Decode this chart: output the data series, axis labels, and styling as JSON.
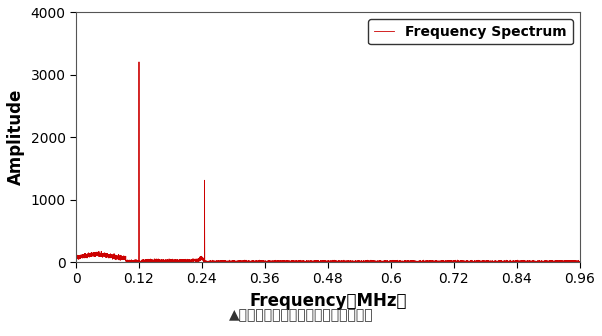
{
  "xlabel": "Frequency（MHz）",
  "ylabel": "Amplitude",
  "xlim": [
    0,
    0.96
  ],
  "ylim": [
    0,
    4000
  ],
  "xticks": [
    0,
    0.12,
    0.24,
    0.36,
    0.48,
    0.6,
    0.72,
    0.84,
    0.96
  ],
  "xtick_labels": [
    "0",
    "0.12",
    "0.24",
    "0.36",
    "0.48",
    "0.6",
    "0.72",
    "0.84",
    "0.96"
  ],
  "yticks": [
    0,
    1000,
    2000,
    3000,
    4000
  ],
  "ytick_labels": [
    "0",
    "1000",
    "2000",
    "3000",
    "4000"
  ],
  "peak1_freq": 0.12,
  "peak1_amp": 3200,
  "peak2_freq": 0.245,
  "peak2_amp": 1300,
  "line_color": "#cc0000",
  "legend_label": "Frequency Spectrum",
  "caption": "▲输气／液管道流量检测信号的频谱图",
  "caption_color": "#333333",
  "bg_color": "#ffffff",
  "caption_fontsize": 10,
  "axis_label_fontsize": 12,
  "legend_fontsize": 10,
  "tick_fontsize": 10
}
